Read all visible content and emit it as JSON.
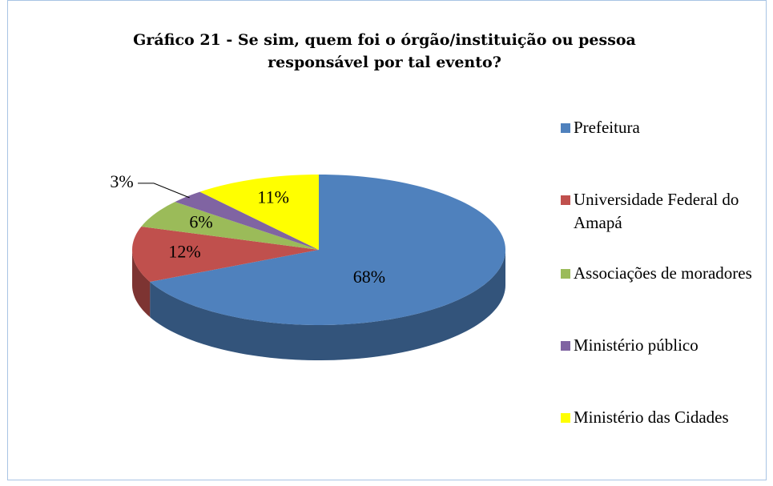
{
  "chart_data": {
    "type": "pie",
    "title": "Gráfico 21 - Se sim, quem foi o órgão/instituição ou pessoa responsável por tal evento?",
    "categories": [
      "Prefeitura",
      "Universidade Federal do Amapá",
      "Associações de moradores",
      "Ministério público",
      "Ministério das Cidades"
    ],
    "values": [
      68,
      12,
      6,
      3,
      11
    ],
    "value_labels": [
      "68%",
      "12%",
      "6%",
      "3%",
      "11%"
    ],
    "colors": [
      "#4f81bd",
      "#c0504d",
      "#9bbb59",
      "#8064a2",
      "#ffff00"
    ],
    "legend": "right"
  }
}
